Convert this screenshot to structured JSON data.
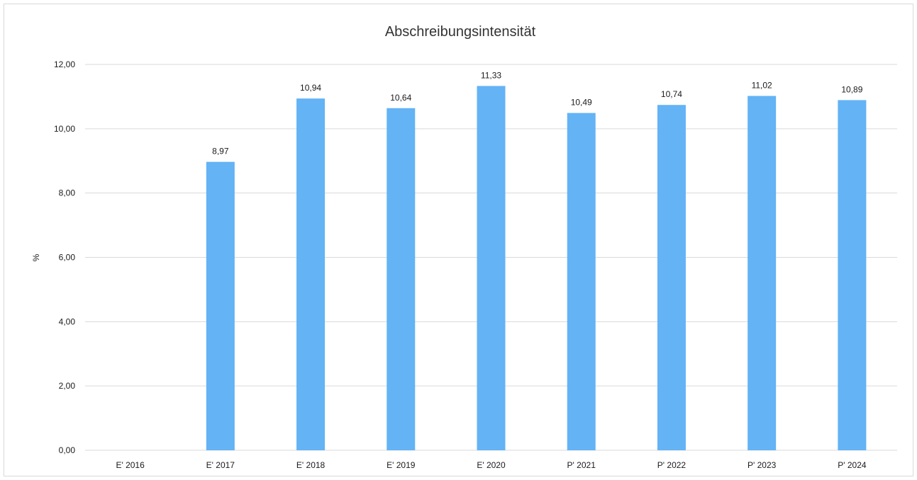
{
  "chart_data": {
    "type": "bar",
    "title": "Abschreibungsintensität",
    "xlabel": "",
    "ylabel": "%",
    "categories": [
      "E' 2016",
      "E' 2017",
      "E' 2018",
      "E' 2019",
      "E' 2020",
      "P' 2021",
      "P' 2022",
      "P' 2023",
      "P' 2024"
    ],
    "values": [
      null,
      8.97,
      10.94,
      10.64,
      11.33,
      10.49,
      10.74,
      11.02,
      10.89
    ],
    "value_labels": [
      "",
      "8,97",
      "10,94",
      "10,64",
      "11,33",
      "10,49",
      "10,74",
      "11,02",
      "10,89"
    ],
    "ylim": [
      0,
      12
    ],
    "yticks": [
      0,
      2,
      4,
      6,
      8,
      10,
      12
    ],
    "ytick_labels": [
      "0,00",
      "2,00",
      "4,00",
      "6,00",
      "8,00",
      "10,00",
      "12,00"
    ],
    "grid": true,
    "legend": "none",
    "bar_color": "#63b3f5",
    "grid_color": "#d9d9d9"
  }
}
